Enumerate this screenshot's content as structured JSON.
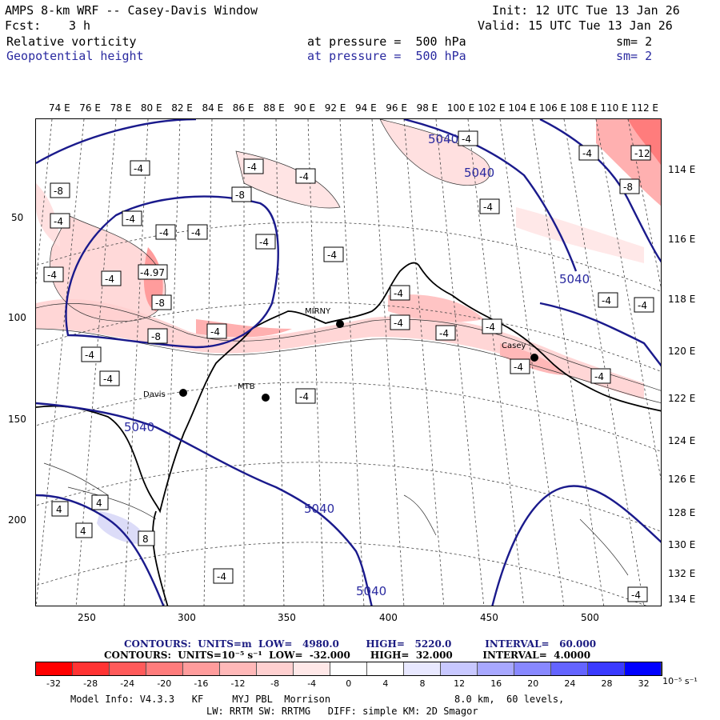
{
  "header": {
    "title": "AMPS 8-km WRF -- Casey-Davis Window",
    "fcst_label": "Fcst:",
    "fcst_value": "3 h",
    "init": "Init: 12 UTC Tue 13 Jan 26",
    "valid": "Valid: 15 UTC Tue 13 Jan 26",
    "field1": {
      "name": "Relative vorticity",
      "level": "at pressure =  500 hPa",
      "sm": "sm= 2"
    },
    "field2": {
      "name": "Geopotential height",
      "level": "at pressure =  500 hPa",
      "sm": "sm= 2"
    }
  },
  "map": {
    "top_lon_labels": [
      "74 E",
      "76 E",
      "78 E",
      "80 E",
      "82 E",
      "84 E",
      "86 E",
      "88 E",
      "90 E",
      "92 E",
      "94 E",
      "96 E",
      "98 E",
      "100 E",
      "102 E",
      "104 E",
      "106 E",
      "108 E",
      "110 E",
      "112 E"
    ],
    "right_lon_labels": [
      "114 E",
      "116 E",
      "118 E",
      "120 E",
      "122 E",
      "124 E",
      "126 E",
      "128 E",
      "130 E",
      "132 E",
      "134 E"
    ],
    "x_ticks": [
      "250",
      "300",
      "350",
      "400",
      "450",
      "500"
    ],
    "y_ticks": [
      "50",
      "100",
      "150",
      "200"
    ],
    "stations": [
      "MIRNY",
      "Casey",
      "Davis",
      "MTB"
    ],
    "height_contour_label": "5040",
    "vort_labels": [
      "-4",
      "-8",
      "4",
      "8",
      "-12",
      "-4.97"
    ]
  },
  "footer": {
    "contour1": {
      "label": "CONTOURS:",
      "units": "UNITS=m",
      "low": "LOW=",
      "low_val": "4980.0",
      "high": "HIGH=",
      "high_val": "5220.0",
      "interval": "INTERVAL=",
      "interval_val": "60.000"
    },
    "contour2": {
      "label": "CONTOURS:",
      "units": "UNITS=10⁻⁵ s⁻¹",
      "low": "LOW=",
      "low_val": "-32.000",
      "high": "HIGH=",
      "high_val": "32.000",
      "interval": "INTERVAL=",
      "interval_val": "4.0000"
    },
    "colorbar_labels": [
      "-32",
      "-28",
      "-24",
      "-20",
      "-16",
      "-12",
      "-8",
      "-4",
      "0",
      "4",
      "8",
      "12",
      "16",
      "20",
      "24",
      "28",
      "32"
    ],
    "colorbar_unit": "10⁻⁵ s⁻¹",
    "colorbar_colors": [
      "#ff0000",
      "#ff3333",
      "#ff5a5a",
      "#ff7c7c",
      "#ff9c9c",
      "#ffb8b8",
      "#ffd0d0",
      "#ffe8e8",
      "#ffffff",
      "#ffffff",
      "#e8e8ff",
      "#c8c8ff",
      "#a8a8ff",
      "#8888ff",
      "#6464ff",
      "#3a3aff",
      "#0000ff"
    ],
    "model_info": "Model Info: V4.3.3   KF     MYJ PBL  Morrison",
    "resolution": "8.0 km,  60 levels,",
    "physics": "LW: RRTM SW: RRTMG   DIFF: simple KM: 2D Smagor"
  }
}
